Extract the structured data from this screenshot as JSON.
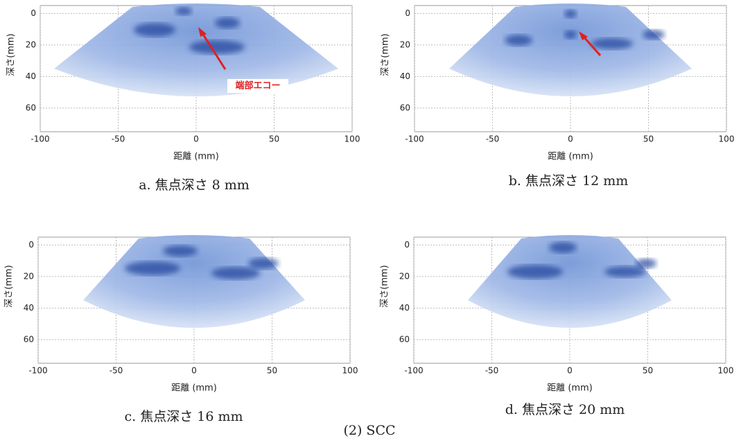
{
  "figure_caption": "(2) SCC",
  "panels": [
    {
      "caption": "a. 焦点深さ 8 mm",
      "x_label": "距離 (mm)",
      "y_label": "深さ(mm)",
      "xlim": [
        -100,
        100
      ],
      "ylim": [
        -5,
        75
      ],
      "xticks": [
        -100,
        -50,
        0,
        50,
        100
      ],
      "yticks": [
        0,
        20,
        40,
        60
      ],
      "annotation": "端部エコー"
    },
    {
      "caption": "b. 焦点深さ 12 mm",
      "x_label": "距離 (mm)",
      "y_label": "深さ(mm)",
      "xlim": [
        -100,
        100
      ],
      "ylim": [
        -5,
        75
      ],
      "xticks": [
        -100,
        -50,
        0,
        50,
        100
      ],
      "yticks": [
        0,
        20,
        40,
        60
      ]
    },
    {
      "caption": "c. 焦点深さ 16 mm",
      "x_label": "距離 (mm)",
      "y_label": "深さ(mm)",
      "xlim": [
        -100,
        100
      ],
      "ylim": [
        -5,
        75
      ],
      "xticks": [
        -100,
        -50,
        0,
        50,
        100
      ],
      "yticks": [
        0,
        20,
        40,
        60
      ]
    },
    {
      "caption": "d. 焦点深さ 20 mm",
      "x_label": "距離 (mm)",
      "y_label": "深さ(mm)",
      "xlim": [
        -100,
        100
      ],
      "ylim": [
        -5,
        75
      ],
      "xticks": [
        -100,
        -50,
        0,
        50,
        100
      ],
      "yticks": [
        0,
        20,
        40,
        60
      ]
    }
  ]
}
